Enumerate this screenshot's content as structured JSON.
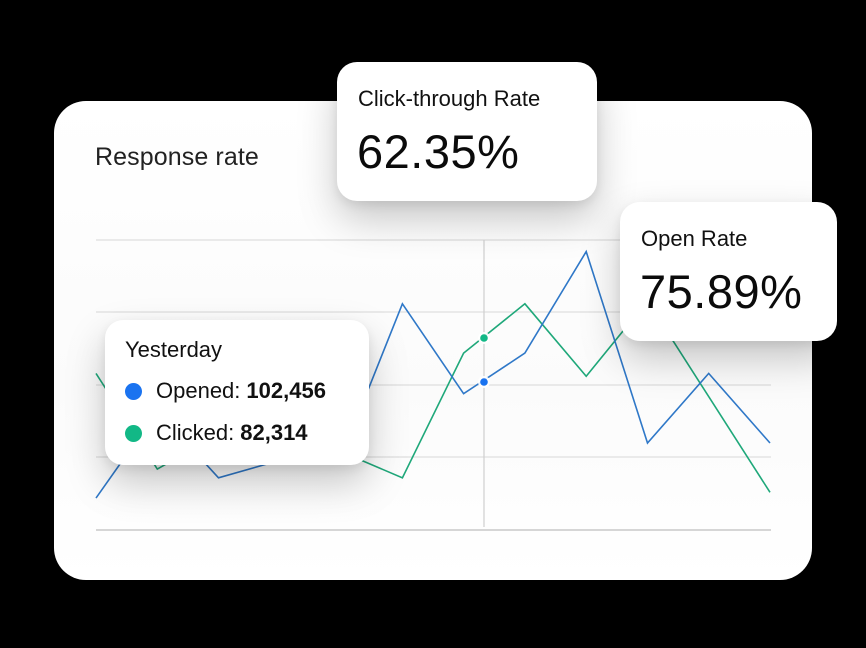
{
  "card": {
    "title": "Response rate"
  },
  "metrics": {
    "click_through": {
      "label": "Click-through Rate",
      "value": "62.35%"
    },
    "open_rate": {
      "label": "Open Rate",
      "value": "75.89%"
    }
  },
  "tooltip": {
    "title": "Yesterday",
    "rows": [
      {
        "label": "Opened:",
        "value": "102,456",
        "color": "#1a73f0"
      },
      {
        "label": "Clicked:",
        "value": "82,314",
        "color": "#12b886"
      }
    ]
  },
  "colors": {
    "opened_line": "#2f78c8",
    "clicked_line": "#1fa87a",
    "opened_dot": "#1a73f0",
    "clicked_dot": "#12b886",
    "gridline": "#dedede",
    "baseline": "#c8c8c8"
  },
  "chart_data": {
    "type": "line",
    "title": "Response rate",
    "xlabel": "",
    "ylabel": "",
    "x": [
      1,
      2,
      3,
      4,
      5,
      6,
      7,
      8,
      9,
      10,
      11,
      12
    ],
    "ylim": [
      0,
      100
    ],
    "grid": true,
    "series": [
      {
        "name": "Opened",
        "values": [
          11,
          41,
          18,
          24,
          25,
          78,
          47,
          61,
          96,
          30,
          54,
          30
        ]
      },
      {
        "name": "Clicked",
        "values": [
          54,
          21,
          33,
          31,
          27,
          18,
          61,
          78,
          53,
          79,
          46,
          13
        ]
      }
    ],
    "hover_index_between": [
      7,
      8
    ],
    "hover_values": {
      "Opened": 102456,
      "Clicked": 82314,
      "label": "Yesterday"
    },
    "annotations": [
      "Click-through Rate 62.35%",
      "Open Rate 75.89%"
    ]
  }
}
